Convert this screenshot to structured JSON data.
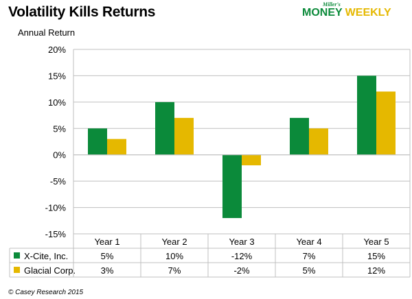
{
  "title": "Volatility Kills Returns",
  "logo": {
    "small": "Miller's",
    "money": "MONEY",
    "weekly": "WEEKLY"
  },
  "footer": "© Casey Research 2015",
  "chart_data": {
    "type": "bar",
    "title": "Volatility Kills Returns",
    "ylabel": "Annual Return",
    "xlabel": "",
    "categories": [
      "Year 1",
      "Year 2",
      "Year 3",
      "Year 4",
      "Year 5"
    ],
    "ylim": [
      -15,
      20
    ],
    "yticks": [
      20,
      15,
      10,
      5,
      0,
      -5,
      -10,
      -15
    ],
    "ytick_labels": [
      "20%",
      "15%",
      "10%",
      "5%",
      "0%",
      "-5%",
      "-10%",
      "-15%"
    ],
    "grid": true,
    "legend": "data-table",
    "series": [
      {
        "name": "X-Cite, Inc.",
        "values": [
          5,
          10,
          -12,
          7,
          15
        ],
        "labels": [
          "5%",
          "10%",
          "-12%",
          "7%",
          "15%"
        ],
        "color": "#0b8a3a"
      },
      {
        "name": "Glacial Corp.",
        "values": [
          3,
          7,
          -2,
          5,
          12
        ],
        "labels": [
          "3%",
          "7%",
          "-2%",
          "5%",
          "12%"
        ],
        "color": "#e5b800"
      }
    ]
  }
}
